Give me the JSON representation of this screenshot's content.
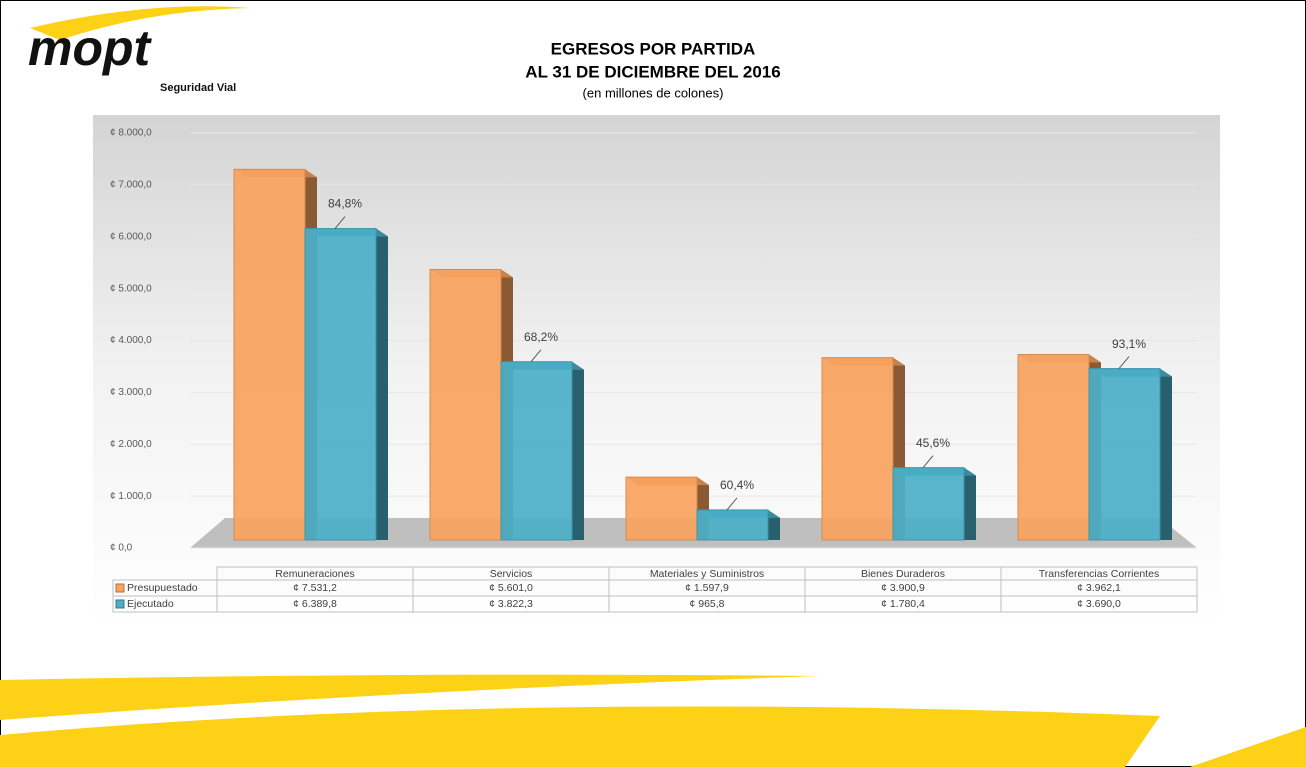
{
  "logo": {
    "text": "mopt",
    "subtitle": "Seguridad Vial"
  },
  "chart_data": {
    "type": "bar",
    "title": "EGRESOS POR PARTIDA",
    "subtitle": "AL 31 DE DICIEMBRE DEL 2016",
    "note": "(en millones de colones)",
    "categories": [
      "Remuneraciones",
      "Servicios",
      "Materiales y Suministros",
      "Bienes Duraderos",
      "Transferencias Corrientes"
    ],
    "series": [
      {
        "name": "Presupuestado",
        "color": "#f9a35e",
        "values": [
          7531.2,
          5601.0,
          1597.9,
          3900.9,
          3962.1
        ],
        "value_labels": [
          "¢ 7.531,2",
          "¢ 5.601,0",
          "¢ 1.597,9",
          "¢ 3.900,9",
          "¢ 3.962,1"
        ]
      },
      {
        "name": "Ejecutado",
        "color": "#4bafc8",
        "values": [
          6389.8,
          3822.3,
          965.8,
          1780.4,
          3690.0
        ],
        "value_labels": [
          "¢ 6.389,8",
          "¢ 3.822,3",
          "¢ 965,8",
          "¢ 1.780,4",
          "¢ 3.690,0"
        ]
      }
    ],
    "annotations": [
      "84,8%",
      "68,2%",
      "60,4%",
      "45,6%",
      "93,1%"
    ],
    "ylim": [
      0,
      8000
    ],
    "yticks": [
      {
        "value": 0,
        "label": "¢ 0,0"
      },
      {
        "value": 1000,
        "label": "¢ 1.000,0"
      },
      {
        "value": 2000,
        "label": "¢ 2.000,0"
      },
      {
        "value": 3000,
        "label": "¢ 3.000,0"
      },
      {
        "value": 4000,
        "label": "¢ 4.000,0"
      },
      {
        "value": 5000,
        "label": "¢ 5.000,0"
      },
      {
        "value": 6000,
        "label": "¢ 6.000,0"
      },
      {
        "value": 7000,
        "label": "¢ 7.000,0"
      },
      {
        "value": 8000,
        "label": "¢ 8.000,0"
      }
    ],
    "grid": true
  }
}
